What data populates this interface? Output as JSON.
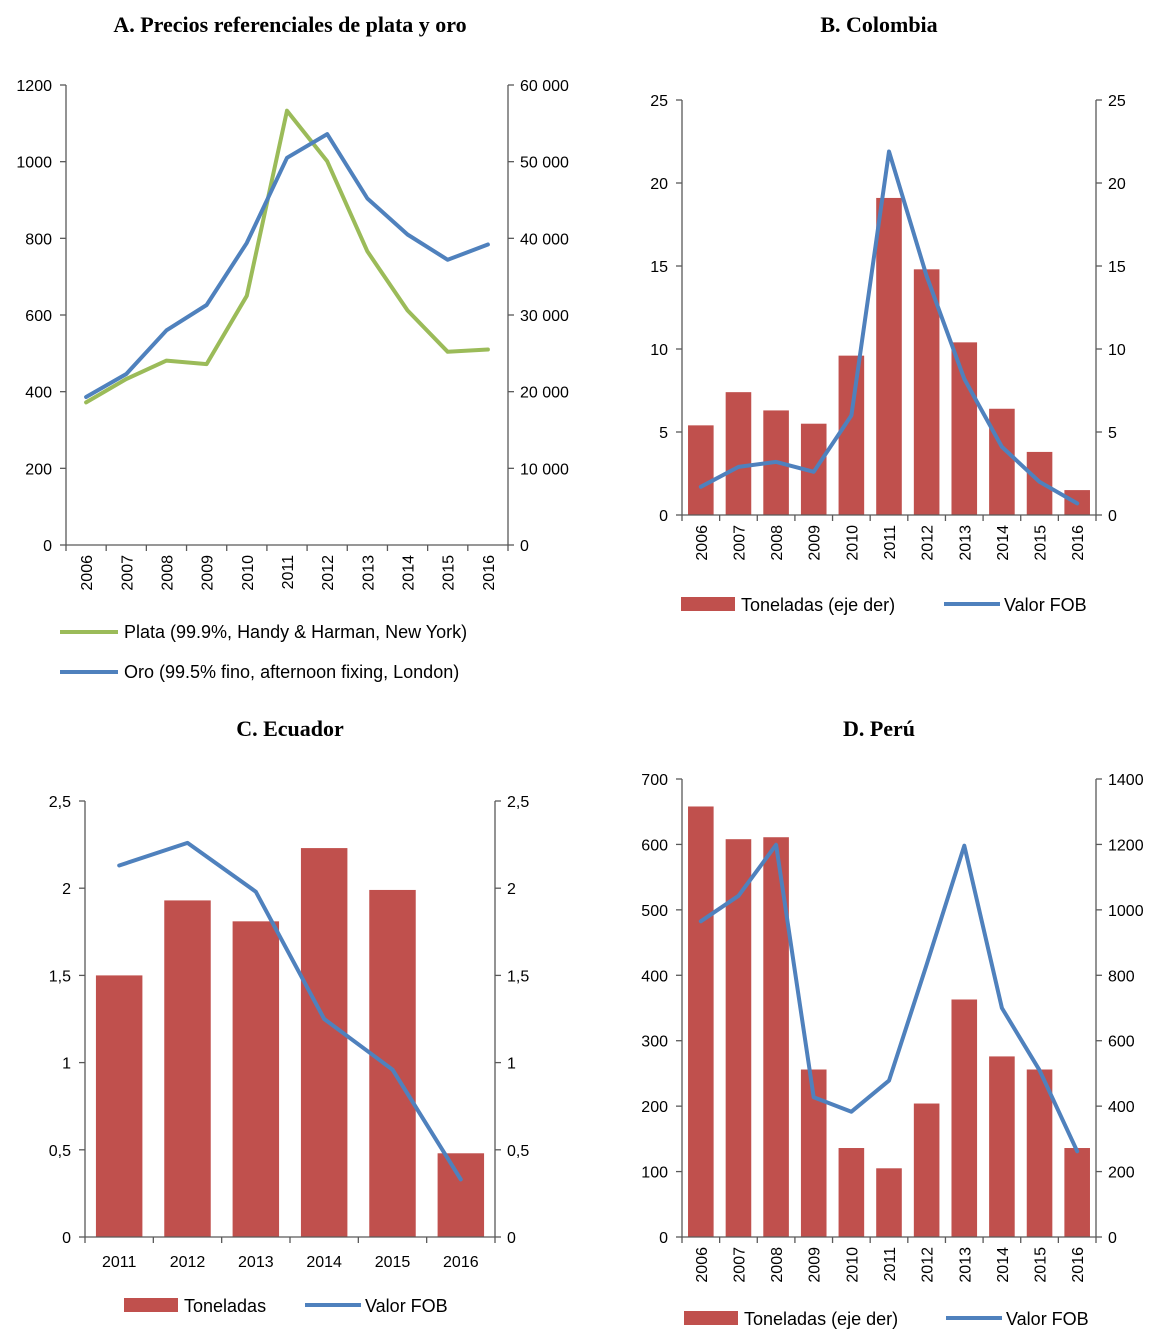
{
  "chart_data": [
    {
      "id": "a",
      "type": "line",
      "title": "A. Precios referenciales de plata y oro",
      "categories": [
        "2006",
        "2007",
        "2008",
        "2009",
        "2010",
        "2011",
        "2012",
        "2013",
        "2014",
        "2015",
        "2016"
      ],
      "rotate_categories": true,
      "y_left": {
        "range": [
          0,
          1200
        ],
        "ticks": [
          0,
          200,
          400,
          600,
          800,
          1000,
          1200
        ],
        "tick_labels": [
          "0",
          "200",
          "400",
          "600",
          "800",
          "1000",
          "1200"
        ]
      },
      "y_right": {
        "range": [
          0,
          60000
        ],
        "ticks": [
          0,
          10000,
          20000,
          30000,
          40000,
          50000,
          60000
        ],
        "tick_labels": [
          "0",
          "10 000",
          "20 000",
          "30 000",
          "40 000",
          "50 000",
          "60 000"
        ]
      },
      "series": [
        {
          "name": "Plata (99.9%, Handy & Harman, New York)",
          "kind": "line",
          "axis": "left",
          "color": "#9BBB59",
          "values": [
            372,
            433,
            481,
            472,
            650,
            1133,
            1001,
            766,
            612,
            504,
            510
          ]
        },
        {
          "name": "Oro (99.5% fino, afternoon fixing, London)",
          "kind": "line",
          "axis": "right",
          "color": "#4F81BD",
          "values": [
            19300,
            22300,
            28000,
            31300,
            39400,
            50500,
            53600,
            45200,
            40500,
            37200,
            39200
          ]
        }
      ],
      "legend": {
        "position": "bottom",
        "layout": "stacked"
      }
    },
    {
      "id": "b",
      "type": "bar",
      "title": "B. Colombia",
      "categories": [
        "2006",
        "2007",
        "2008",
        "2009",
        "2010",
        "2011",
        "2012",
        "2013",
        "2014",
        "2015",
        "2016"
      ],
      "rotate_categories": true,
      "y_left": {
        "range": [
          0,
          25
        ],
        "ticks": [
          0,
          5,
          10,
          15,
          20,
          25
        ],
        "tick_labels": [
          "0",
          "5",
          "10",
          "15",
          "20",
          "25"
        ]
      },
      "y_right": {
        "range": [
          0,
          25
        ],
        "ticks": [
          0,
          5,
          10,
          15,
          20,
          25
        ],
        "tick_labels": [
          "0",
          "5",
          "10",
          "15",
          "20",
          "25"
        ]
      },
      "series": [
        {
          "name": "Toneladas (eje der)",
          "kind": "bar",
          "axis": "right",
          "color": "#C0504D",
          "values": [
            5.4,
            7.4,
            6.3,
            5.5,
            9.6,
            19.1,
            14.8,
            10.4,
            6.4,
            3.8,
            1.5
          ]
        },
        {
          "name": "Valor FOB",
          "kind": "line",
          "axis": "left",
          "color": "#4F81BD",
          "values": [
            1.7,
            2.9,
            3.2,
            2.6,
            6.0,
            21.9,
            14.4,
            8.2,
            4.1,
            2.0,
            0.7
          ]
        }
      ],
      "legend": {
        "position": "bottom",
        "layout": "row"
      }
    },
    {
      "id": "c",
      "type": "bar",
      "title": "C. Ecuador",
      "categories": [
        "2011",
        "2012",
        "2013",
        "2014",
        "2015",
        "2016"
      ],
      "rotate_categories": false,
      "y_left": {
        "range": [
          0,
          2.5
        ],
        "ticks": [
          0,
          0.5,
          1,
          1.5,
          2,
          2.5
        ],
        "tick_labels": [
          "0",
          "0,5",
          "1",
          "1,5",
          "2",
          "2,5"
        ]
      },
      "y_right": {
        "range": [
          0,
          2.5
        ],
        "ticks": [
          0,
          0.5,
          1,
          1.5,
          2,
          2.5
        ],
        "tick_labels": [
          "0",
          "0,5",
          "1",
          "1,5",
          "2",
          "2,5"
        ]
      },
      "series": [
        {
          "name": "Toneladas",
          "kind": "bar",
          "axis": "left",
          "color": "#C0504D",
          "values": [
            1.5,
            1.93,
            1.81,
            2.23,
            1.99,
            0.48
          ]
        },
        {
          "name": "Valor FOB",
          "kind": "line",
          "axis": "right",
          "color": "#4F81BD",
          "values": [
            2.13,
            2.26,
            1.98,
            1.25,
            0.96,
            0.33
          ]
        }
      ],
      "legend": {
        "position": "bottom",
        "layout": "row"
      }
    },
    {
      "id": "d",
      "type": "bar",
      "title": "D. Perú",
      "categories": [
        "2006",
        "2007",
        "2008",
        "2009",
        "2010",
        "2011",
        "2012",
        "2013",
        "2014",
        "2015",
        "2016"
      ],
      "rotate_categories": true,
      "y_left": {
        "range": [
          0,
          700
        ],
        "ticks": [
          0,
          100,
          200,
          300,
          400,
          500,
          600,
          700
        ],
        "tick_labels": [
          "0",
          "100",
          "200",
          "300",
          "400",
          "500",
          "600",
          "700"
        ]
      },
      "y_right": {
        "range": [
          0,
          1400
        ],
        "ticks": [
          0,
          200,
          400,
          600,
          800,
          1000,
          1200,
          1400
        ],
        "tick_labels": [
          "0",
          "200",
          "400",
          "600",
          "800",
          "1000",
          "1200",
          "1400"
        ]
      },
      "series": [
        {
          "name": "Toneladas (eje der)",
          "kind": "bar",
          "axis": "left",
          "color": "#C0504D",
          "values": [
            658,
            608,
            611,
            256,
            136,
            105,
            204,
            363,
            276,
            256,
            136
          ]
        },
        {
          "name": "Valor FOB",
          "kind": "line",
          "axis": "right",
          "color": "#4F81BD",
          "values": [
            965,
            1043,
            1199,
            427,
            383,
            478,
            832,
            1196,
            700,
            510,
            262
          ]
        }
      ],
      "legend": {
        "position": "bottom",
        "layout": "row"
      }
    }
  ]
}
